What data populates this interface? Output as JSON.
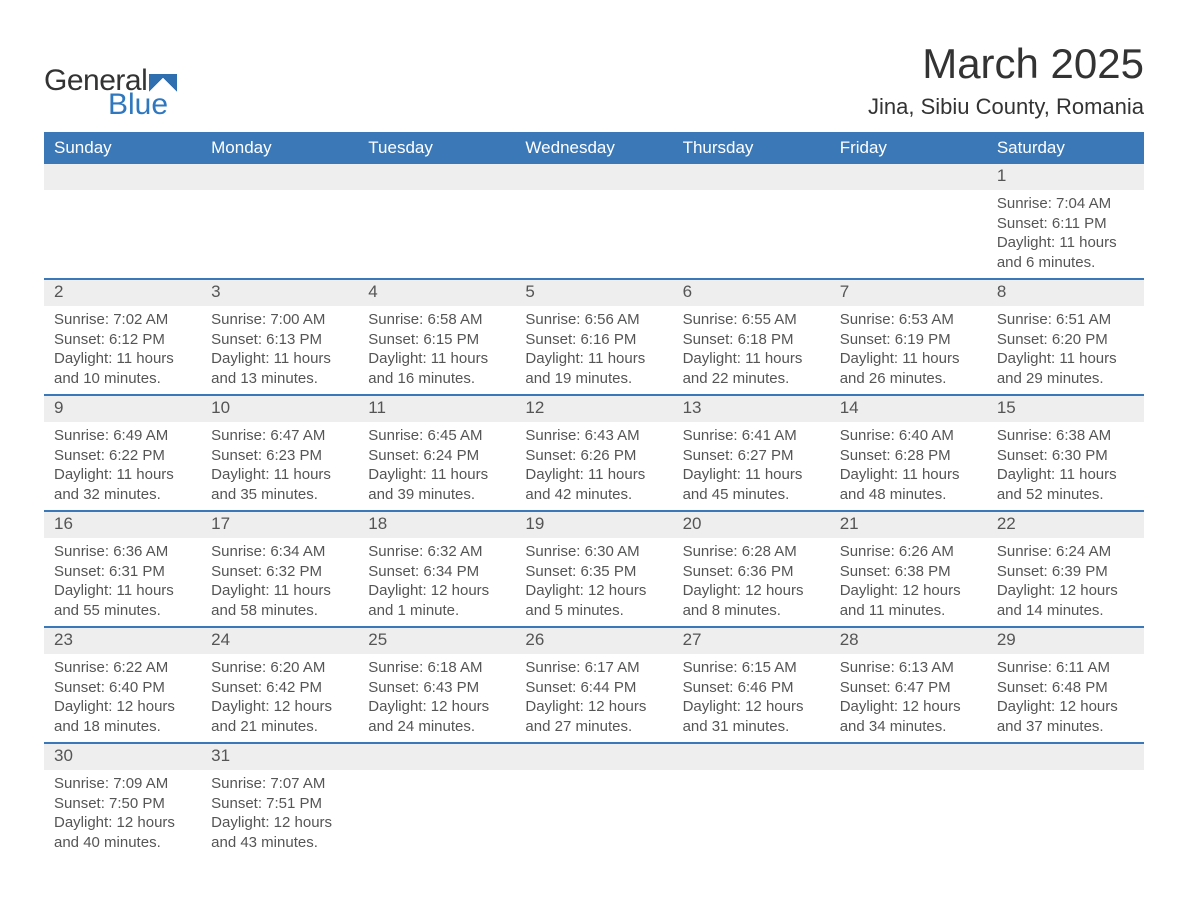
{
  "brand": {
    "word1": "General",
    "word2": "Blue",
    "accent": "#2f78bf"
  },
  "title": "March 2025",
  "location": "Jina, Sibiu County, Romania",
  "header_bg": "#3a78b8",
  "daynum_bg": "#eeeeee",
  "row_border": "#3a78b8",
  "text_color": "#555555",
  "dayNames": [
    "Sunday",
    "Monday",
    "Tuesday",
    "Wednesday",
    "Thursday",
    "Friday",
    "Saturday"
  ],
  "weeks": [
    [
      null,
      null,
      null,
      null,
      null,
      null,
      {
        "n": "1",
        "sunrise": "7:04 AM",
        "sunset": "6:11 PM",
        "daylight": "11 hours and 6 minutes."
      }
    ],
    [
      {
        "n": "2",
        "sunrise": "7:02 AM",
        "sunset": "6:12 PM",
        "daylight": "11 hours and 10 minutes."
      },
      {
        "n": "3",
        "sunrise": "7:00 AM",
        "sunset": "6:13 PM",
        "daylight": "11 hours and 13 minutes."
      },
      {
        "n": "4",
        "sunrise": "6:58 AM",
        "sunset": "6:15 PM",
        "daylight": "11 hours and 16 minutes."
      },
      {
        "n": "5",
        "sunrise": "6:56 AM",
        "sunset": "6:16 PM",
        "daylight": "11 hours and 19 minutes."
      },
      {
        "n": "6",
        "sunrise": "6:55 AM",
        "sunset": "6:18 PM",
        "daylight": "11 hours and 22 minutes."
      },
      {
        "n": "7",
        "sunrise": "6:53 AM",
        "sunset": "6:19 PM",
        "daylight": "11 hours and 26 minutes."
      },
      {
        "n": "8",
        "sunrise": "6:51 AM",
        "sunset": "6:20 PM",
        "daylight": "11 hours and 29 minutes."
      }
    ],
    [
      {
        "n": "9",
        "sunrise": "6:49 AM",
        "sunset": "6:22 PM",
        "daylight": "11 hours and 32 minutes."
      },
      {
        "n": "10",
        "sunrise": "6:47 AM",
        "sunset": "6:23 PM",
        "daylight": "11 hours and 35 minutes."
      },
      {
        "n": "11",
        "sunrise": "6:45 AM",
        "sunset": "6:24 PM",
        "daylight": "11 hours and 39 minutes."
      },
      {
        "n": "12",
        "sunrise": "6:43 AM",
        "sunset": "6:26 PM",
        "daylight": "11 hours and 42 minutes."
      },
      {
        "n": "13",
        "sunrise": "6:41 AM",
        "sunset": "6:27 PM",
        "daylight": "11 hours and 45 minutes."
      },
      {
        "n": "14",
        "sunrise": "6:40 AM",
        "sunset": "6:28 PM",
        "daylight": "11 hours and 48 minutes."
      },
      {
        "n": "15",
        "sunrise": "6:38 AM",
        "sunset": "6:30 PM",
        "daylight": "11 hours and 52 minutes."
      }
    ],
    [
      {
        "n": "16",
        "sunrise": "6:36 AM",
        "sunset": "6:31 PM",
        "daylight": "11 hours and 55 minutes."
      },
      {
        "n": "17",
        "sunrise": "6:34 AM",
        "sunset": "6:32 PM",
        "daylight": "11 hours and 58 minutes."
      },
      {
        "n": "18",
        "sunrise": "6:32 AM",
        "sunset": "6:34 PM",
        "daylight": "12 hours and 1 minute."
      },
      {
        "n": "19",
        "sunrise": "6:30 AM",
        "sunset": "6:35 PM",
        "daylight": "12 hours and 5 minutes."
      },
      {
        "n": "20",
        "sunrise": "6:28 AM",
        "sunset": "6:36 PM",
        "daylight": "12 hours and 8 minutes."
      },
      {
        "n": "21",
        "sunrise": "6:26 AM",
        "sunset": "6:38 PM",
        "daylight": "12 hours and 11 minutes."
      },
      {
        "n": "22",
        "sunrise": "6:24 AM",
        "sunset": "6:39 PM",
        "daylight": "12 hours and 14 minutes."
      }
    ],
    [
      {
        "n": "23",
        "sunrise": "6:22 AM",
        "sunset": "6:40 PM",
        "daylight": "12 hours and 18 minutes."
      },
      {
        "n": "24",
        "sunrise": "6:20 AM",
        "sunset": "6:42 PM",
        "daylight": "12 hours and 21 minutes."
      },
      {
        "n": "25",
        "sunrise": "6:18 AM",
        "sunset": "6:43 PM",
        "daylight": "12 hours and 24 minutes."
      },
      {
        "n": "26",
        "sunrise": "6:17 AM",
        "sunset": "6:44 PM",
        "daylight": "12 hours and 27 minutes."
      },
      {
        "n": "27",
        "sunrise": "6:15 AM",
        "sunset": "6:46 PM",
        "daylight": "12 hours and 31 minutes."
      },
      {
        "n": "28",
        "sunrise": "6:13 AM",
        "sunset": "6:47 PM",
        "daylight": "12 hours and 34 minutes."
      },
      {
        "n": "29",
        "sunrise": "6:11 AM",
        "sunset": "6:48 PM",
        "daylight": "12 hours and 37 minutes."
      }
    ],
    [
      {
        "n": "30",
        "sunrise": "7:09 AM",
        "sunset": "7:50 PM",
        "daylight": "12 hours and 40 minutes."
      },
      {
        "n": "31",
        "sunrise": "7:07 AM",
        "sunset": "7:51 PM",
        "daylight": "12 hours and 43 minutes."
      },
      null,
      null,
      null,
      null,
      null
    ]
  ],
  "labels": {
    "sunrise": "Sunrise: ",
    "sunset": "Sunset: ",
    "daylight": "Daylight: "
  }
}
